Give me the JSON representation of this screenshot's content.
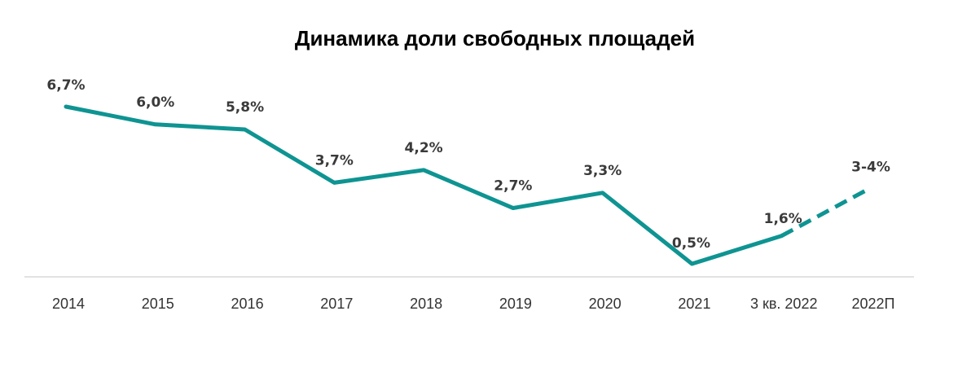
{
  "chart_data": {
    "type": "line",
    "title": "Динамика доли свободных площадей",
    "xlabel": "",
    "ylabel": "",
    "categories": [
      "2014",
      "2015",
      "2016",
      "2017",
      "2018",
      "2019",
      "2020",
      "2021",
      "3 кв. 2022",
      "2022П"
    ],
    "values": [
      6.7,
      6.0,
      5.8,
      3.7,
      4.2,
      2.7,
      3.3,
      0.5,
      1.6,
      3.5
    ],
    "data_labels": [
      "6,7%",
      "6,0%",
      "5,8%",
      "3,7%",
      "4,2%",
      "2,7%",
      "3,3%",
      "0,5%",
      "1,6%",
      "3-4%"
    ],
    "forecast_range": [
      3,
      4
    ],
    "forecast_from_index": 8,
    "ylim": [
      0,
      7
    ],
    "grid": false,
    "legend": "none",
    "color": "#0e9492",
    "axis_color": "#d9d9d9"
  }
}
